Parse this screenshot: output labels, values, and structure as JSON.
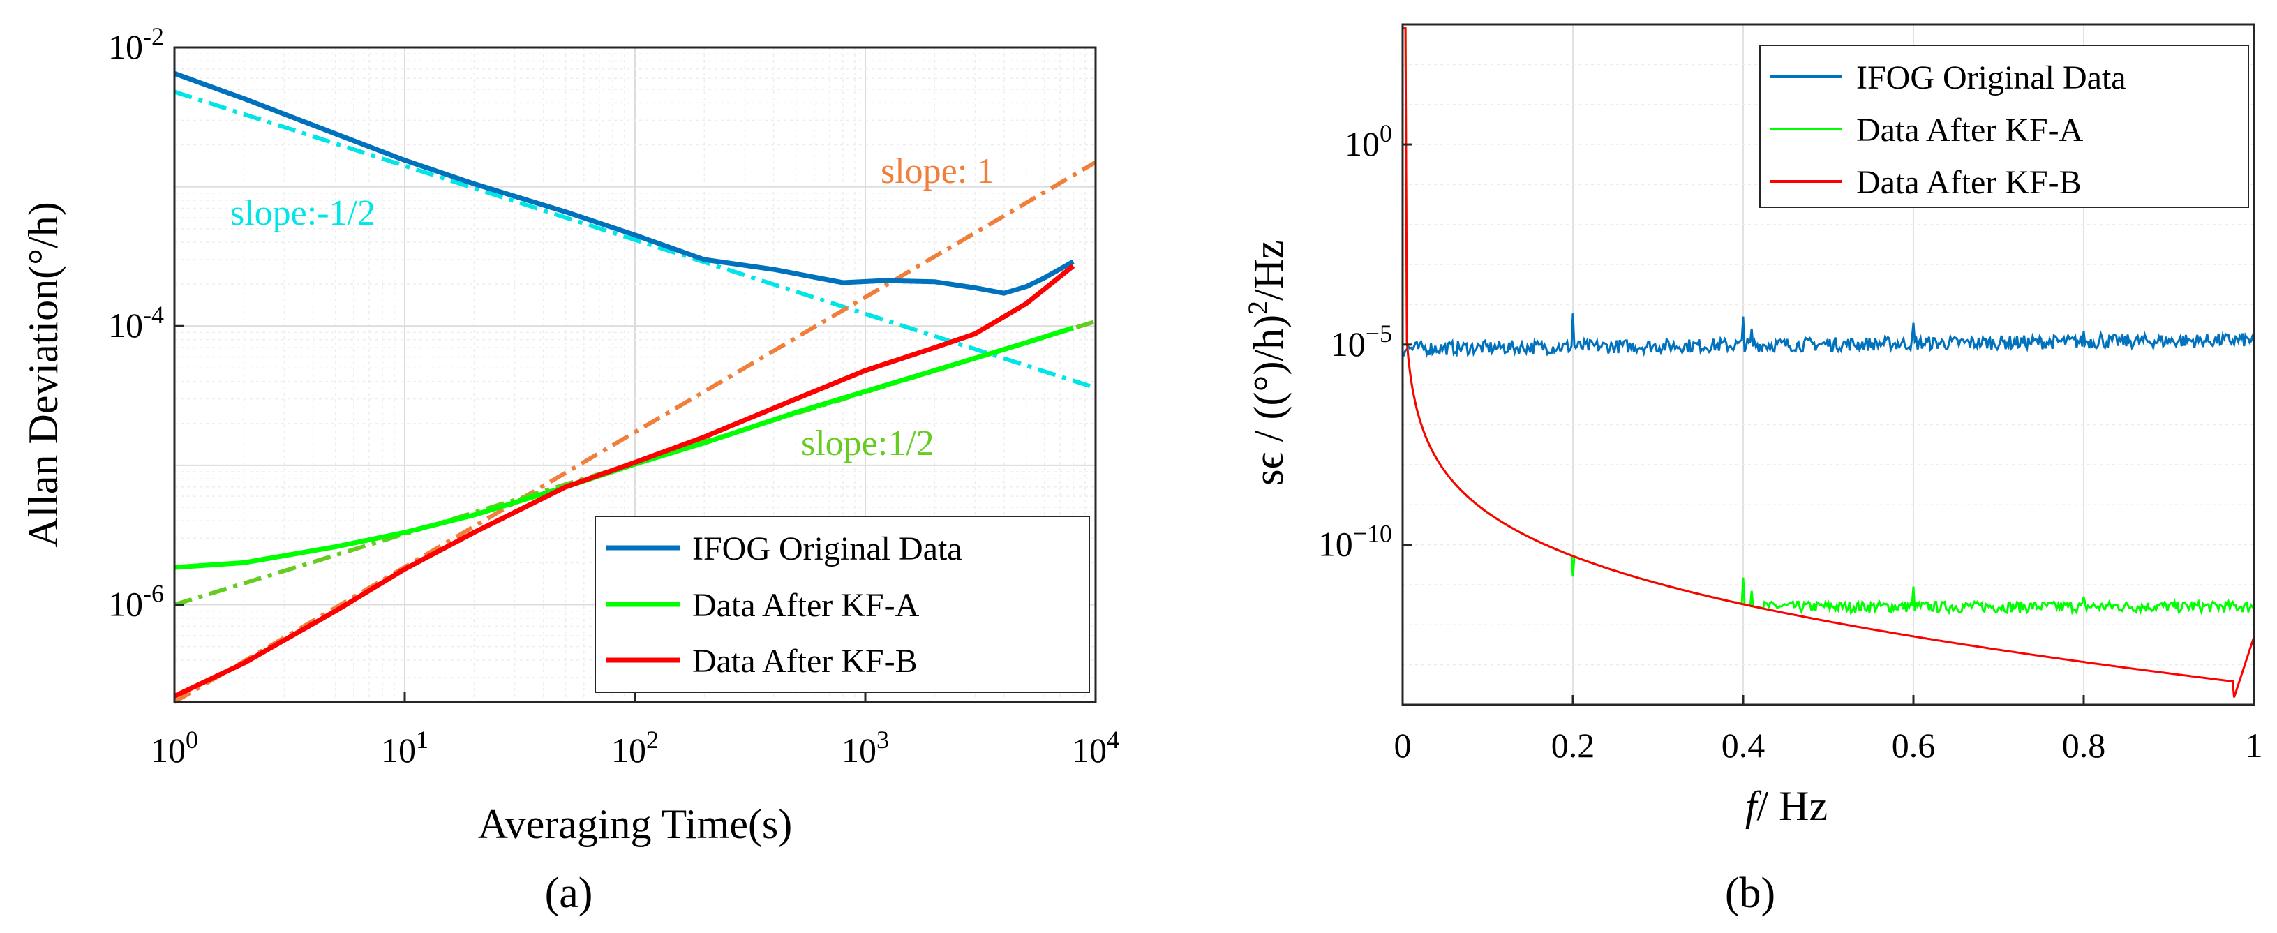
{
  "chart_data": [
    {
      "type": "line",
      "scale": {
        "x": "log",
        "y": "log"
      },
      "panel_label": "(a)",
      "xlabel": "Averaging Time(s)",
      "ylabel": "Allan Deviation(°/h)",
      "xlim": [
        1,
        10000
      ],
      "ylim": [
        2e-07,
        0.01
      ],
      "grid": true,
      "xticks": [
        {
          "value": 1,
          "base": "10",
          "exp": "0"
        },
        {
          "value": 10,
          "base": "10",
          "exp": "1"
        },
        {
          "value": 100,
          "base": "10",
          "exp": "2"
        },
        {
          "value": 1000,
          "base": "10",
          "exp": "3"
        },
        {
          "value": 10000,
          "base": "10",
          "exp": "4"
        }
      ],
      "yticks": [
        {
          "value": 1e-06,
          "base": "10",
          "exp": "-6"
        },
        {
          "value": 0.0001,
          "base": "10",
          "exp": "-4"
        },
        {
          "value": 0.01,
          "base": "10",
          "exp": "-2"
        }
      ],
      "legend": {
        "position": "bottom-right"
      },
      "series": [
        {
          "name": "IFOG Original Data",
          "color": "#0072BD",
          "x": [
            1,
            2,
            5,
            10,
            20,
            50,
            100,
            200,
            400,
            800,
            1200,
            2000,
            3000,
            4000,
            5000,
            6000,
            8000
          ],
          "y": [
            0.0065,
            0.0043,
            0.0024,
            0.00155,
            0.00105,
            0.00066,
            0.00045,
            0.0003,
            0.000255,
            0.000205,
            0.000212,
            0.000208,
            0.000188,
            0.000172,
            0.000192,
            0.000222,
            0.00029
          ]
        },
        {
          "name": "Data After KF-A",
          "color": "#00FF00",
          "x": [
            1,
            2,
            5,
            10,
            20,
            50,
            100,
            200,
            500,
            1000,
            2000,
            5000,
            8000
          ],
          "y": [
            1.85e-06,
            2e-06,
            2.6e-06,
            3.3e-06,
            4.4e-06,
            7e-06,
            1.02e-05,
            1.45e-05,
            2.4e-05,
            3.4e-05,
            4.8e-05,
            7.6e-05,
            9.7e-05
          ]
        },
        {
          "name": "Data After KF-B",
          "color": "#FF0000",
          "x": [
            1,
            2,
            5,
            10,
            20,
            50,
            100,
            200,
            500,
            1000,
            2000,
            3000,
            5000,
            8000
          ],
          "y": [
            2.2e-07,
            3.8e-07,
            9e-07,
            1.8e-06,
            3.3e-06,
            7e-06,
            1.05e-05,
            1.6e-05,
            3e-05,
            4.8e-05,
            7e-05,
            8.8e-05,
            0.000145,
            0.00027
          ]
        }
      ],
      "reference_lines": [
        {
          "label": "slope:-1/2",
          "color": "#00E5E5",
          "x": [
            1,
            10000
          ],
          "y": [
            0.0048,
            3.6e-05
          ]
        },
        {
          "label": "slope: 1",
          "color": "#F07F3C",
          "x": [
            1,
            10000
          ],
          "y": [
            2e-07,
            0.0015
          ]
        },
        {
          "label": "slope:1/2",
          "color": "#66CC22",
          "x": [
            1,
            10000
          ],
          "y": [
            1e-06,
            0.000108
          ]
        }
      ]
    },
    {
      "type": "line",
      "scale": {
        "x": "linear",
        "y": "log"
      },
      "panel_label": "(b)",
      "xlabel_f": "f",
      "xlabel_rest": "/ Hz",
      "ylabel_main": "sϵ / ((°)/h)",
      "ylabel_sup": "2",
      "ylabel_end": "/Hz",
      "xlim": [
        0,
        1
      ],
      "ylim": [
        1e-14,
        1000.0
      ],
      "grid": true,
      "xticks": [
        {
          "value": 0,
          "label": "0"
        },
        {
          "value": 0.2,
          "label": "0.2"
        },
        {
          "value": 0.4,
          "label": "0.4"
        },
        {
          "value": 0.6,
          "label": "0.6"
        },
        {
          "value": 0.8,
          "label": "0.8"
        },
        {
          "value": 1,
          "label": "1"
        }
      ],
      "yticks": [
        {
          "value": 1e-10,
          "base": "10",
          "exp": "−10"
        },
        {
          "value": 1e-05,
          "base": "10",
          "exp": "−5"
        },
        {
          "value": 1,
          "base": "10",
          "exp": "0"
        }
      ],
      "legend": {
        "position": "top-right"
      },
      "series": [
        {
          "name": "IFOG Original Data",
          "color": "#0072BD",
          "model": "flat-noise",
          "level_start": 8e-06,
          "level_end": 1.3e-05,
          "spikes": [
            {
              "f": 0.2,
              "value": 6e-05
            },
            {
              "f": 0.4,
              "value": 5e-05
            },
            {
              "f": 0.41,
              "value": 2.5e-05
            },
            {
              "f": 0.6,
              "value": 3.5e-05
            },
            {
              "f": 0.8,
              "value": 2.2e-05
            },
            {
              "f": 0.82,
              "value": 1.9e-05
            }
          ]
        },
        {
          "name": "Data After KF-A",
          "color": "#00FF00",
          "model": "decay-to-floor",
          "start_value": 800,
          "floor": 2e-12,
          "spikes": [
            {
              "f": 0.2,
              "value": 1.6e-11
            },
            {
              "f": 0.4,
              "value": 1.5e-11
            },
            {
              "f": 0.41,
              "value": 7e-12
            },
            {
              "f": 0.6,
              "value": 9e-12
            },
            {
              "f": 0.8,
              "value": 5e-12
            }
          ]
        },
        {
          "name": "Data After KF-B",
          "color": "#FF0000",
          "model": "decay",
          "start_value": 800,
          "min_value": 1.2e-14,
          "end_value": 5e-13
        }
      ]
    }
  ]
}
